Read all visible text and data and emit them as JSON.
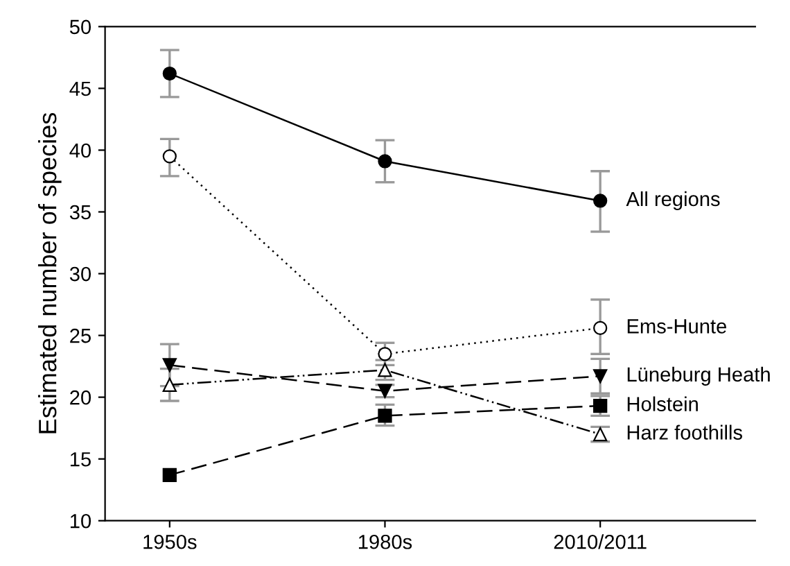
{
  "chart_data": {
    "type": "line",
    "ylabel": "Estimated number of species",
    "categories": [
      "1950s",
      "1980s",
      "2010/2011"
    ],
    "ylim": [
      10,
      50
    ],
    "yticks": [
      10,
      15,
      20,
      25,
      30,
      35,
      40,
      45,
      50
    ],
    "grid": false,
    "legend": false,
    "series": [
      {
        "name": "All regions",
        "color": "#000000",
        "marker": "circle",
        "line_style": "solid",
        "values": [
          46.2,
          39.1,
          35.9
        ],
        "errors": [
          [
            44.3,
            48.1
          ],
          [
            37.4,
            40.8
          ],
          [
            33.4,
            38.3
          ]
        ]
      },
      {
        "name": "Ems-Hunte",
        "color": "#000000",
        "marker": "circle_open",
        "line_style": "dotted",
        "values": [
          39.5,
          23.5,
          25.6
        ],
        "errors": [
          [
            37.9,
            40.9
          ],
          [
            22.6,
            24.4
          ],
          [
            23.5,
            27.9
          ]
        ]
      },
      {
        "name": "Lüneburg Heath",
        "color": "#000000",
        "marker": "triangle_down",
        "line_style": "dashed",
        "values": [
          22.6,
          20.5,
          21.7
        ],
        "errors": [
          [
            20.9,
            24.3
          ],
          [
            20.0,
            21.0
          ],
          [
            20.3,
            23.1
          ]
        ]
      },
      {
        "name": "Holstein",
        "color": "#000000",
        "marker": "square",
        "line_style": "dashed",
        "values": [
          13.7,
          18.5,
          19.3
        ],
        "errors": [
          null,
          [
            17.7,
            19.4
          ],
          [
            18.5,
            20.1
          ]
        ]
      },
      {
        "name": "Harz foothills",
        "color": "#000000",
        "marker": "triangle_open",
        "line_style": "dashdotdot",
        "values": [
          21.0,
          22.2,
          17.0
        ],
        "errors": [
          [
            19.7,
            22.3
          ],
          [
            21.4,
            23.0
          ],
          [
            16.4,
            17.6
          ]
        ]
      }
    ]
  }
}
